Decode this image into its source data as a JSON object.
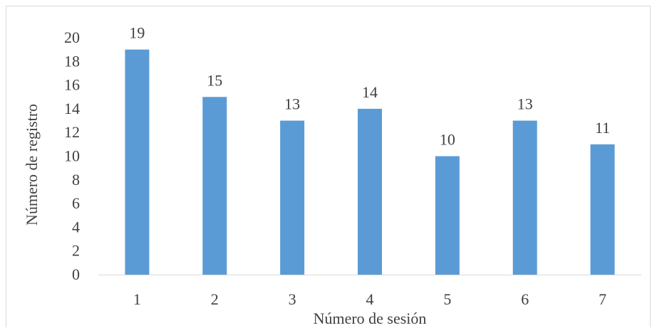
{
  "chart_data": {
    "type": "bar",
    "categories": [
      "1",
      "2",
      "3",
      "4",
      "5",
      "6",
      "7"
    ],
    "values": [
      19,
      15,
      13,
      14,
      10,
      13,
      11
    ],
    "data_labels": [
      "19",
      "15",
      "13",
      "14",
      "10",
      "13",
      "11"
    ],
    "title": "",
    "xlabel": "Número de sesión",
    "ylabel": "Número de registro",
    "ylim": [
      0,
      20
    ],
    "yticks": [
      "0",
      "2",
      "4",
      "6",
      "8",
      "10",
      "12",
      "14",
      "16",
      "18",
      "20"
    ],
    "grid": false,
    "legend": "none",
    "bar_color": "#5B9BD5",
    "axis_color": "#d9d9d9",
    "text_color": "#404040"
  }
}
